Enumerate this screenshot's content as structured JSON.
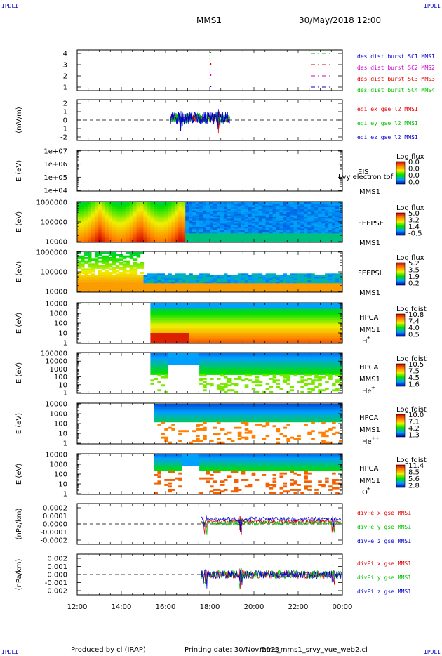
{
  "header": {
    "corner_label": "IPDLI",
    "spacecraft": "MMS1",
    "datetime": "30/May/2018 12:00"
  },
  "footer": {
    "produced_by": "Produced by cl (IRAP)",
    "printing_date": "Printing date: 30/Nov/2023",
    "script_name": "mms_mms1_srvy_vue_web2.cl"
  },
  "colors": {
    "red": "#e00000",
    "green": "#00c000",
    "blue": "#0000d0",
    "magenta": "#d000d0",
    "black": "#000000"
  },
  "chart_data": [
    {
      "type": "line",
      "name": "burst",
      "ylim": [
        0.5,
        4.5
      ],
      "yticks": [
        "1",
        "2",
        "3",
        "4"
      ],
      "legend_position": "top-right",
      "series": [
        {
          "name": "des dist burst SC1 MMS1",
          "color": "#0000d0",
          "marker_y": 1
        },
        {
          "name": "des dist burst SC2 MMS2",
          "color": "#d000d0",
          "marker_y": 2
        },
        {
          "name": "des dist burst SC3 MMS3",
          "color": "#e00000",
          "marker_y": 3
        },
        {
          "name": "des dist burst SC4 MMS4",
          "color": "#00c000",
          "marker_y": 4
        }
      ]
    },
    {
      "type": "line",
      "name": "edi",
      "ylabel": "(mV/m)",
      "ylim": [
        -2.5,
        2.5
      ],
      "yticks": [
        "2",
        "1",
        "0",
        "-1",
        "-2"
      ],
      "series": [
        {
          "name": "edi ex gse l2 MMS1",
          "color": "#e00000"
        },
        {
          "name": "edi ey gse l2 MMS1",
          "color": "#00c000"
        },
        {
          "name": "edi ez gse l2 MMS1",
          "color": "#0000d0"
        }
      ]
    },
    {
      "type": "heatmap",
      "name": "eis",
      "ylabel": "E (eV)",
      "yticks": [
        "1e+07",
        "1e+06",
        "1e+05",
        "1e+04"
      ],
      "instrument": "EIS",
      "note": "Lvy electron tof",
      "spacecraft": "MMS1",
      "colorbar": {
        "title": "Log flux",
        "ticks": [
          "0.0",
          "0.0",
          "0.0",
          "0.0"
        ]
      }
    },
    {
      "type": "heatmap",
      "name": "feepse",
      "ylabel": "E (eV)",
      "yticks": [
        "1000000",
        "100000",
        "10000"
      ],
      "instrument": "FEEPSE",
      "spacecraft": "MMS1",
      "colorbar": {
        "title": "Log flux",
        "ticks": [
          "5.0",
          "3.2",
          "1.4",
          "-0.5"
        ]
      }
    },
    {
      "type": "heatmap",
      "name": "feepsi",
      "ylabel": "E (eV)",
      "yticks": [
        "1000000",
        "100000",
        "10000"
      ],
      "instrument": "FEEPSI",
      "spacecraft": "MMS1",
      "colorbar": {
        "title": "Log flux",
        "ticks": [
          "5.2",
          "3.5",
          "1.9",
          "0.2"
        ]
      }
    },
    {
      "type": "heatmap",
      "name": "hpca-h",
      "ylabel": "E (eV)",
      "yticks": [
        "10000",
        "1000",
        "100",
        "10",
        "1"
      ],
      "instrument": "HPCA",
      "spacecraft": "MMS1",
      "species": "H",
      "species_sup": "+",
      "colorbar": {
        "title": "Log fdist",
        "ticks": [
          "10.8",
          "7.4",
          "4.0",
          "0.5"
        ]
      }
    },
    {
      "type": "heatmap",
      "name": "hpca-he",
      "ylabel": "E (eV)",
      "yticks": [
        "100000",
        "10000",
        "1000",
        "100",
        "10",
        "1"
      ],
      "instrument": "HPCA",
      "spacecraft": "MMS1",
      "species": "He",
      "species_sup": "+",
      "colorbar": {
        "title": "Log fdist",
        "ticks": [
          "10.5",
          "7.5",
          "4.5",
          "1.6"
        ]
      }
    },
    {
      "type": "heatmap",
      "name": "hpca-hepp",
      "ylabel": "E (eV)",
      "yticks": [
        "10000",
        "1000",
        "100",
        "10",
        "1"
      ],
      "instrument": "HPCA",
      "spacecraft": "MMS1",
      "species": "He",
      "species_sup": "++",
      "colorbar": {
        "title": "Log fdist",
        "ticks": [
          "10.0",
          "7.1",
          "4.2",
          "1.3"
        ]
      }
    },
    {
      "type": "heatmap",
      "name": "hpca-o",
      "ylabel": "E (eV)",
      "yticks": [
        "10000",
        "1000",
        "100",
        "10",
        "1"
      ],
      "instrument": "HPCA",
      "spacecraft": "MMS1",
      "species": "O",
      "species_sup": "+",
      "colorbar": {
        "title": "Log fdist",
        "ticks": [
          "11.4",
          "8.5",
          "5.6",
          "2.8"
        ]
      }
    },
    {
      "type": "line",
      "name": "divpe",
      "ylabel": "(nPa/km)",
      "ylim": [
        -0.00025,
        0.00025
      ],
      "yticks": [
        "0.0002",
        "0.0001",
        "0.0000",
        "-0.0001",
        "-0.0002"
      ],
      "series": [
        {
          "name": "divPe x gse MMS1",
          "color": "#e00000"
        },
        {
          "name": "divPe y gse MMS1",
          "color": "#00c000"
        },
        {
          "name": "divPe z gse MMS1",
          "color": "#0000d0"
        }
      ]
    },
    {
      "type": "line",
      "name": "divpi",
      "ylabel": "(nPa/km)",
      "ylim": [
        -0.0025,
        0.0025
      ],
      "yticks": [
        "0.002",
        "0.001",
        "0.000",
        "-0.001",
        "-0.002"
      ],
      "series": [
        {
          "name": "divPi x gse MMS1",
          "color": "#e00000"
        },
        {
          "name": "divPi y gse MMS1",
          "color": "#00c000"
        },
        {
          "name": "divPi z gse MMS1",
          "color": "#0000d0"
        }
      ],
      "xticks": [
        "12:00",
        "14:00",
        "16:00",
        "18:00",
        "20:00",
        "22:00",
        "00:00"
      ]
    }
  ]
}
